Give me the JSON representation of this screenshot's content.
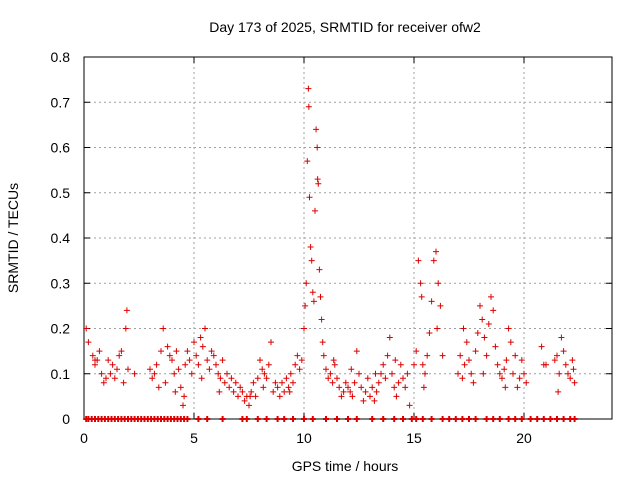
{
  "chart_data": {
    "type": "scatter",
    "title": "Day 173 of 2025, SRMTID for receiver ofw2",
    "xlabel": "GPS time / hours",
    "ylabel": "SRMTID / TECUs",
    "xlim": [
      0,
      24
    ],
    "ylim": [
      0,
      0.8
    ],
    "xticks": [
      0,
      5,
      10,
      15,
      20
    ],
    "xtick_labels": [
      "0",
      "5",
      "10",
      "15",
      "20"
    ],
    "yticks": [
      0,
      0.1,
      0.2,
      0.3,
      0.4,
      0.5,
      0.6,
      0.7,
      0.8
    ],
    "ytick_labels": [
      "0",
      "0.1",
      "0.2",
      "0.3",
      "0.4",
      "0.5",
      "0.6",
      "0.7",
      "0.8"
    ],
    "grid": true,
    "marker": "+",
    "series": [
      {
        "name": "SRMTID",
        "color": "#dd0000",
        "points": [
          [
            0.1,
            0.2
          ],
          [
            0.2,
            0.17
          ],
          [
            0.4,
            0.14
          ],
          [
            0.5,
            0.12
          ],
          [
            0.6,
            0.13
          ],
          [
            0.7,
            0.15
          ],
          [
            0.8,
            0.1
          ],
          [
            0.9,
            0.08
          ],
          [
            1.0,
            0.09
          ],
          [
            1.1,
            0.13
          ],
          [
            1.2,
            0.1
          ],
          [
            1.3,
            0.12
          ],
          [
            1.5,
            0.11
          ],
          [
            1.6,
            0.14
          ],
          [
            1.7,
            0.15
          ],
          [
            1.8,
            0.08
          ],
          [
            1.9,
            0.2
          ],
          [
            1.95,
            0.24
          ],
          [
            2.0,
            0.11
          ],
          [
            2.3,
            0.1
          ],
          [
            3.0,
            0.11
          ],
          [
            3.1,
            0.09
          ],
          [
            3.2,
            0.1
          ],
          [
            3.3,
            0.12
          ],
          [
            3.5,
            0.15
          ],
          [
            3.6,
            0.2
          ],
          [
            3.7,
            0.08
          ],
          [
            3.8,
            0.16
          ],
          [
            3.9,
            0.14
          ],
          [
            4.0,
            0.13
          ],
          [
            4.1,
            0.1
          ],
          [
            4.15,
            0.06
          ],
          [
            4.2,
            0.15
          ],
          [
            4.3,
            0.11
          ],
          [
            4.4,
            0.07
          ],
          [
            4.5,
            0.03
          ],
          [
            4.6,
            0.12
          ],
          [
            4.7,
            0.15
          ],
          [
            4.8,
            0.13
          ],
          [
            4.9,
            0.1
          ],
          [
            5.0,
            0.17
          ],
          [
            5.1,
            0.14
          ],
          [
            5.2,
            0.12
          ],
          [
            5.3,
            0.18
          ],
          [
            5.4,
            0.16
          ],
          [
            5.5,
            0.2
          ],
          [
            5.6,
            0.13
          ],
          [
            5.7,
            0.11
          ],
          [
            5.8,
            0.15
          ],
          [
            5.9,
            0.14
          ],
          [
            6.0,
            0.12
          ],
          [
            6.1,
            0.1
          ],
          [
            6.2,
            0.09
          ],
          [
            6.3,
            0.13
          ],
          [
            6.4,
            0.08
          ],
          [
            6.5,
            0.1
          ],
          [
            6.6,
            0.07
          ],
          [
            6.7,
            0.09
          ],
          [
            6.8,
            0.06
          ],
          [
            6.9,
            0.08
          ],
          [
            7.0,
            0.05
          ],
          [
            7.1,
            0.07
          ],
          [
            7.2,
            0.06
          ],
          [
            7.3,
            0.04
          ],
          [
            7.4,
            0.05
          ],
          [
            7.5,
            0.03
          ],
          [
            7.6,
            0.06
          ],
          [
            7.7,
            0.08
          ],
          [
            7.8,
            0.05
          ],
          [
            7.9,
            0.09
          ],
          [
            8.0,
            0.13
          ],
          [
            8.1,
            0.11
          ],
          [
            8.2,
            0.1
          ],
          [
            8.3,
            0.09
          ],
          [
            8.4,
            0.12
          ],
          [
            8.5,
            0.17
          ],
          [
            8.6,
            0.06
          ],
          [
            8.7,
            0.08
          ],
          [
            8.8,
            0.07
          ],
          [
            8.9,
            0.05
          ],
          [
            9.0,
            0.08
          ],
          [
            9.1,
            0.06
          ],
          [
            9.2,
            0.09
          ],
          [
            9.3,
            0.07
          ],
          [
            9.4,
            0.1
          ],
          [
            9.5,
            0.08
          ],
          [
            9.6,
            0.12
          ],
          [
            9.7,
            0.14
          ],
          [
            9.8,
            0.11
          ],
          [
            9.9,
            0.13
          ],
          [
            10.0,
            0.2
          ],
          [
            10.05,
            0.25
          ],
          [
            10.1,
            0.3
          ],
          [
            10.15,
            0.57
          ],
          [
            10.2,
            0.73
          ],
          [
            10.22,
            0.69
          ],
          [
            10.25,
            0.49
          ],
          [
            10.3,
            0.38
          ],
          [
            10.35,
            0.35
          ],
          [
            10.4,
            0.28
          ],
          [
            10.45,
            0.26
          ],
          [
            10.5,
            0.46
          ],
          [
            10.55,
            0.64
          ],
          [
            10.6,
            0.6
          ],
          [
            10.62,
            0.53
          ],
          [
            10.65,
            0.52
          ],
          [
            10.7,
            0.33
          ],
          [
            10.75,
            0.27
          ],
          [
            10.8,
            0.22
          ],
          [
            10.85,
            0.17
          ],
          [
            10.9,
            0.14
          ],
          [
            11.0,
            0.11
          ],
          [
            11.1,
            0.09
          ],
          [
            11.2,
            0.1
          ],
          [
            11.3,
            0.08
          ],
          [
            11.4,
            0.12
          ],
          [
            11.5,
            0.09
          ],
          [
            11.6,
            0.07
          ],
          [
            11.7,
            0.05
          ],
          [
            11.8,
            0.06
          ],
          [
            11.9,
            0.08
          ],
          [
            12.0,
            0.07
          ],
          [
            12.1,
            0.06
          ],
          [
            12.2,
            0.05
          ],
          [
            12.3,
            0.08
          ],
          [
            12.4,
            0.15
          ],
          [
            12.5,
            0.1
          ],
          [
            12.6,
            0.07
          ],
          [
            12.7,
            0.04
          ],
          [
            12.8,
            0.06
          ],
          [
            12.9,
            0.09
          ],
          [
            13.0,
            0.05
          ],
          [
            13.1,
            0.07
          ],
          [
            13.2,
            0.04
          ],
          [
            13.3,
            0.06
          ],
          [
            13.4,
            0.08
          ],
          [
            13.5,
            0.1
          ],
          [
            13.6,
            0.12
          ],
          [
            13.7,
            0.09
          ],
          [
            13.8,
            0.14
          ],
          [
            13.9,
            0.18
          ],
          [
            14.0,
            0.1
          ],
          [
            14.1,
            0.07
          ],
          [
            14.2,
            0.05
          ],
          [
            14.3,
            0.08
          ],
          [
            14.4,
            0.12
          ],
          [
            14.5,
            0.09
          ],
          [
            14.6,
            0.07
          ],
          [
            14.7,
            0.1
          ],
          [
            14.8,
            0.03
          ],
          [
            15.0,
            0.12
          ],
          [
            15.1,
            0.15
          ],
          [
            15.2,
            0.35
          ],
          [
            15.3,
            0.3
          ],
          [
            15.35,
            0.27
          ],
          [
            15.4,
            0.12
          ],
          [
            15.45,
            0.07
          ],
          [
            15.5,
            0.1
          ],
          [
            15.6,
            0.14
          ],
          [
            15.7,
            0.19
          ],
          [
            15.8,
            0.26
          ],
          [
            15.9,
            0.35
          ],
          [
            16.0,
            0.37
          ],
          [
            16.1,
            0.3
          ],
          [
            16.2,
            0.25
          ],
          [
            16.3,
            0.14
          ],
          [
            17.0,
            0.1
          ],
          [
            17.1,
            0.14
          ],
          [
            17.2,
            0.09
          ],
          [
            17.3,
            0.12
          ],
          [
            17.4,
            0.17
          ],
          [
            17.5,
            0.13
          ],
          [
            17.6,
            0.1
          ],
          [
            17.7,
            0.08
          ],
          [
            17.8,
            0.15
          ],
          [
            17.9,
            0.19
          ],
          [
            18.0,
            0.25
          ],
          [
            18.1,
            0.22
          ],
          [
            18.2,
            0.18
          ],
          [
            18.3,
            0.14
          ],
          [
            18.4,
            0.21
          ],
          [
            18.5,
            0.27
          ],
          [
            18.6,
            0.24
          ],
          [
            18.7,
            0.16
          ],
          [
            18.8,
            0.12
          ],
          [
            18.9,
            0.1
          ],
          [
            19.0,
            0.09
          ],
          [
            19.1,
            0.11
          ],
          [
            19.2,
            0.13
          ],
          [
            19.3,
            0.2
          ],
          [
            19.4,
            0.17
          ],
          [
            19.5,
            0.1
          ],
          [
            19.6,
            0.14
          ],
          [
            19.7,
            0.07
          ],
          [
            19.8,
            0.09
          ],
          [
            19.9,
            0.13
          ],
          [
            20.0,
            0.1
          ],
          [
            20.1,
            0.08
          ],
          [
            20.8,
            0.16
          ],
          [
            20.9,
            0.12
          ],
          [
            21.0,
            0.12
          ],
          [
            21.4,
            0.13
          ],
          [
            21.5,
            0.14
          ],
          [
            21.6,
            0.1
          ],
          [
            21.7,
            0.18
          ],
          [
            21.8,
            0.15
          ],
          [
            21.9,
            0.12
          ],
          [
            22.0,
            0.1
          ],
          [
            22.1,
            0.09
          ],
          [
            22.2,
            0.13
          ],
          [
            22.3,
            0.08
          ],
          [
            0.5,
            0.13
          ],
          [
            1.4,
            0.09
          ],
          [
            3.4,
            0.07
          ],
          [
            4.55,
            0.05
          ],
          [
            5.35,
            0.09
          ],
          [
            6.15,
            0.06
          ],
          [
            7.55,
            0.05
          ],
          [
            8.15,
            0.07
          ],
          [
            9.35,
            0.06
          ],
          [
            11.35,
            0.13
          ],
          [
            12.15,
            0.11
          ],
          [
            13.25,
            0.1
          ],
          [
            14.15,
            0.13
          ],
          [
            16.05,
            0.2
          ],
          [
            17.25,
            0.2
          ],
          [
            18.15,
            0.1
          ],
          [
            19.15,
            0.07
          ],
          [
            21.55,
            0.06
          ],
          [
            22.25,
            0.11
          ]
        ],
        "zero_points": [
          0.1,
          0.2,
          0.35,
          0.5,
          0.65,
          0.8,
          0.95,
          1.1,
          1.25,
          1.4,
          1.55,
          1.7,
          1.85,
          2.0,
          2.15,
          2.3,
          2.45,
          2.6,
          2.75,
          2.9,
          3.05,
          3.2,
          3.35,
          3.5,
          3.65,
          3.8,
          3.95,
          4.1,
          4.25,
          4.4,
          4.55,
          4.7,
          5.2,
          5.6,
          6.3,
          7.2,
          7.4,
          7.9,
          8.3,
          8.8,
          9.1,
          9.5,
          10.0,
          10.4,
          11.0,
          11.5,
          12.0,
          12.4,
          13.1,
          13.6,
          14.1,
          14.5,
          14.9,
          15.1,
          15.4,
          15.8,
          16.3,
          16.6,
          16.9,
          17.2,
          17.5,
          17.8,
          18.3,
          18.6,
          18.9,
          19.3,
          19.6,
          19.9,
          20.3,
          20.6,
          20.9,
          21.2,
          21.5,
          21.8,
          22.1,
          22.3
        ]
      }
    ]
  }
}
